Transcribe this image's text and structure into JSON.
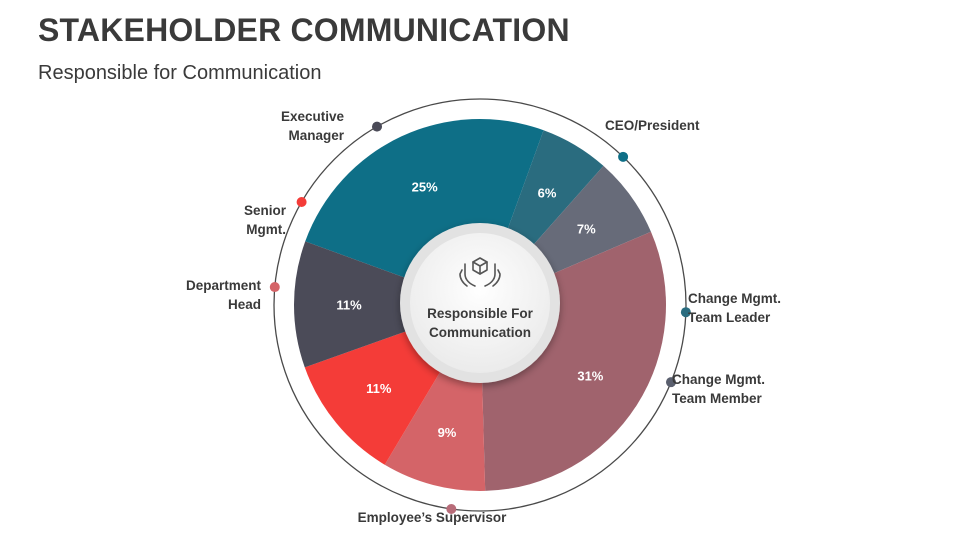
{
  "header": {
    "title": "STAKEHOLDER COMMUNICATION",
    "subtitle": "Responsible for Communication"
  },
  "center": {
    "line1": "Responsible For",
    "line2": "Communication",
    "icon": "hands-holding-cube-icon"
  },
  "chart_data": {
    "type": "pie",
    "title": "",
    "slices": [
      {
        "name": "CEO/President",
        "label_lines": [
          "CEO/President"
        ],
        "value": 25,
        "value_label": "25%",
        "color": "#0e6f87",
        "dot_color": "#0e6f87"
      },
      {
        "name": "Change Mgmt. Team Leader",
        "label_lines": [
          "Change Mgmt.",
          "Team Leader"
        ],
        "value": 6,
        "value_label": "6%",
        "color": "#2a6c7f",
        "dot_color": "#2a6c7f"
      },
      {
        "name": "Change Mgmt. Team Member",
        "label_lines": [
          "Change Mgmt.",
          "Team Member"
        ],
        "value": 7,
        "value_label": "7%",
        "color": "#676b79",
        "dot_color": "#5a5f6e"
      },
      {
        "name": "Employee’s Supervisor",
        "label_lines": [
          "Employee’s Supervisor"
        ],
        "value": 31,
        "value_label": "31%",
        "color": "#a0636d",
        "dot_color": "#b86c79"
      },
      {
        "name": "Department Head",
        "label_lines": [
          "Department",
          "Head"
        ],
        "value": 9,
        "value_label": "9%",
        "color": "#d46468",
        "dot_color": "#d46468"
      },
      {
        "name": "Senior Mgmt.",
        "label_lines": [
          "Senior",
          "Mgmt."
        ],
        "value": 11,
        "value_label": "11%",
        "color": "#f43c38",
        "dot_color": "#f43c38"
      },
      {
        "name": "Executive Manager",
        "label_lines": [
          "Executive",
          "Manager"
        ],
        "value": 11,
        "value_label": "11%",
        "color": "#4b4b58",
        "dot_color": "#4b4b58"
      }
    ]
  }
}
